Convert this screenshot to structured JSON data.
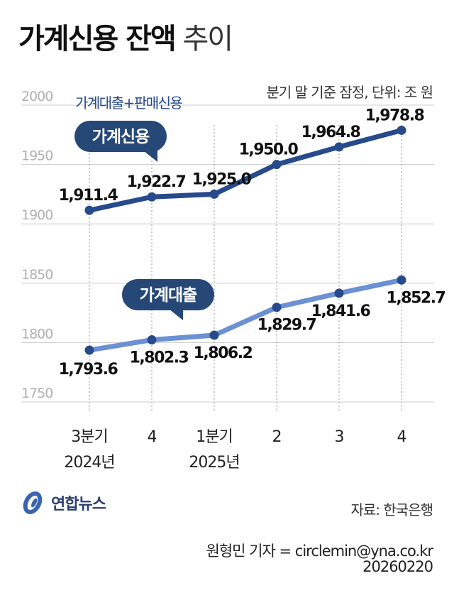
{
  "header": {
    "title_bold": "가계신용 잔액",
    "title_light": "추이",
    "note": "분기 말 기준 잠정, 단위: 조 원"
  },
  "chart_data": {
    "type": "line",
    "categories": [
      "3분기 2024년",
      "4",
      "1분기 2025년",
      "2",
      "3",
      "4"
    ],
    "category_lines": [
      [
        "3분기",
        "2024년"
      ],
      [
        "4"
      ],
      [
        "1분기",
        "2025년"
      ],
      [
        "2"
      ],
      [
        "3"
      ],
      [
        "4"
      ]
    ],
    "ylim": [
      1750,
      2000
    ],
    "yticks": [
      2000,
      1950,
      1900,
      1850,
      1800,
      1750
    ],
    "series": [
      {
        "name": "가계신용",
        "subtitle": "가계대출+판매신용",
        "color": "#274a8c",
        "values": [
          1911.4,
          1922.7,
          1925.0,
          1950.0,
          1964.8,
          1978.8
        ],
        "labels": [
          "1,911.4",
          "1,922.7",
          "1,925.0",
          "1,950.0",
          "1,964.8",
          "1,978.8"
        ]
      },
      {
        "name": "가계대출",
        "color": "#6c90d4",
        "values": [
          1793.6,
          1802.3,
          1806.2,
          1829.7,
          1841.6,
          1852.7
        ],
        "labels": [
          "1,793.6",
          "1,802.3",
          "1,806.2",
          "1,829.7",
          "1,841.6",
          "1,852.7"
        ]
      }
    ],
    "grid": true
  },
  "footer": {
    "logo": "연합뉴스",
    "source": "자료: 한국은행",
    "credit": "원형민 기자 = circlemin@yna.co.kr",
    "date": "20260220"
  },
  "colors": {
    "dark_series": "#274a8c",
    "light_series": "#6c90d4",
    "callout_bg": "#264877",
    "grid": "#cccccc",
    "tick": "#b0b0b0"
  }
}
